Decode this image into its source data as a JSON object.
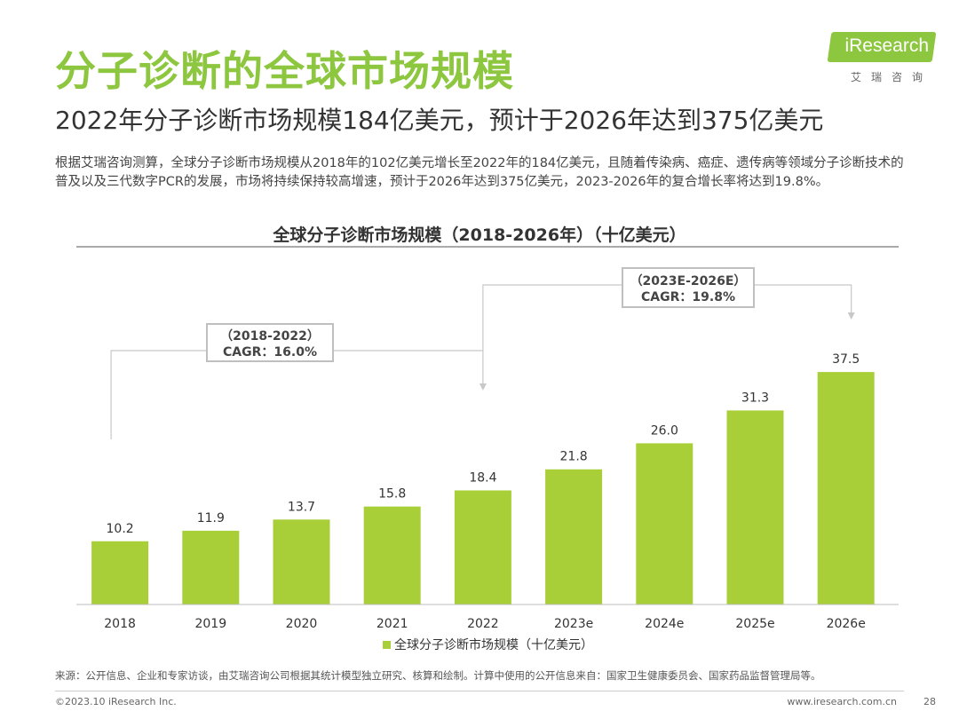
{
  "header": {
    "title": "分子诊断的全球市场规模",
    "subtitle": "2022年分子诊断市场规模184亿美元，预计于2026年达到375亿美元",
    "summary": "根据艾瑞咨询测算，全球分子诊断市场规模从2018年的102亿美元增长至2022年的184亿美元，且随着传染病、癌症、遗传病等领域分子诊断技术的普及以及三代数字PCR的发展，市场将持续保持较高增速，预计于2026年达到375亿美元，2023-2026年的复合增长率将达到19.8%。"
  },
  "logo": {
    "text": "iResearch",
    "cn": "艾瑞咨询"
  },
  "chart_data": {
    "type": "bar",
    "title": "全球分子诊断市场规模（2018-2026年）（十亿美元）",
    "categories": [
      "2018",
      "2019",
      "2020",
      "2021",
      "2022",
      "2023e",
      "2024e",
      "2025e",
      "2026e"
    ],
    "series": [
      {
        "name": "全球分子诊断市场规模（十亿美元）",
        "values": [
          10.2,
          11.9,
          13.7,
          15.8,
          18.4,
          21.8,
          26.0,
          31.3,
          37.5
        ],
        "labels": [
          "10.2",
          "11.9",
          "13.7",
          "15.8",
          "18.4",
          "21.8",
          "26.0",
          "31.3",
          "37.5"
        ]
      }
    ],
    "ylim": [
      0,
      40
    ],
    "grid": false,
    "legend": "bottom",
    "bar_color": "#a8cf38",
    "annotations": [
      {
        "line1": "（2018-2022）",
        "line2": "CAGR：16.0%",
        "from": "2018",
        "to": "2022"
      },
      {
        "line1": "（2023E-2026E）",
        "line2": "CAGR：19.8%",
        "from": "2022",
        "to": "2026e"
      }
    ]
  },
  "footer": {
    "source": "来源：公开信息、企业和专家访谈，由艾瑞咨询公司根据其统计模型独立研究、核算和绘制。计算中使用的公开信息来自：国家卫生健康委员会、国家药品监督管理局等。",
    "copyright": "©2023.10 iResearch Inc.",
    "website": "www.iresearch.com.cn",
    "page": "28"
  },
  "colors": {
    "accent": "#8dc63f",
    "bar": "#a8cf38"
  }
}
